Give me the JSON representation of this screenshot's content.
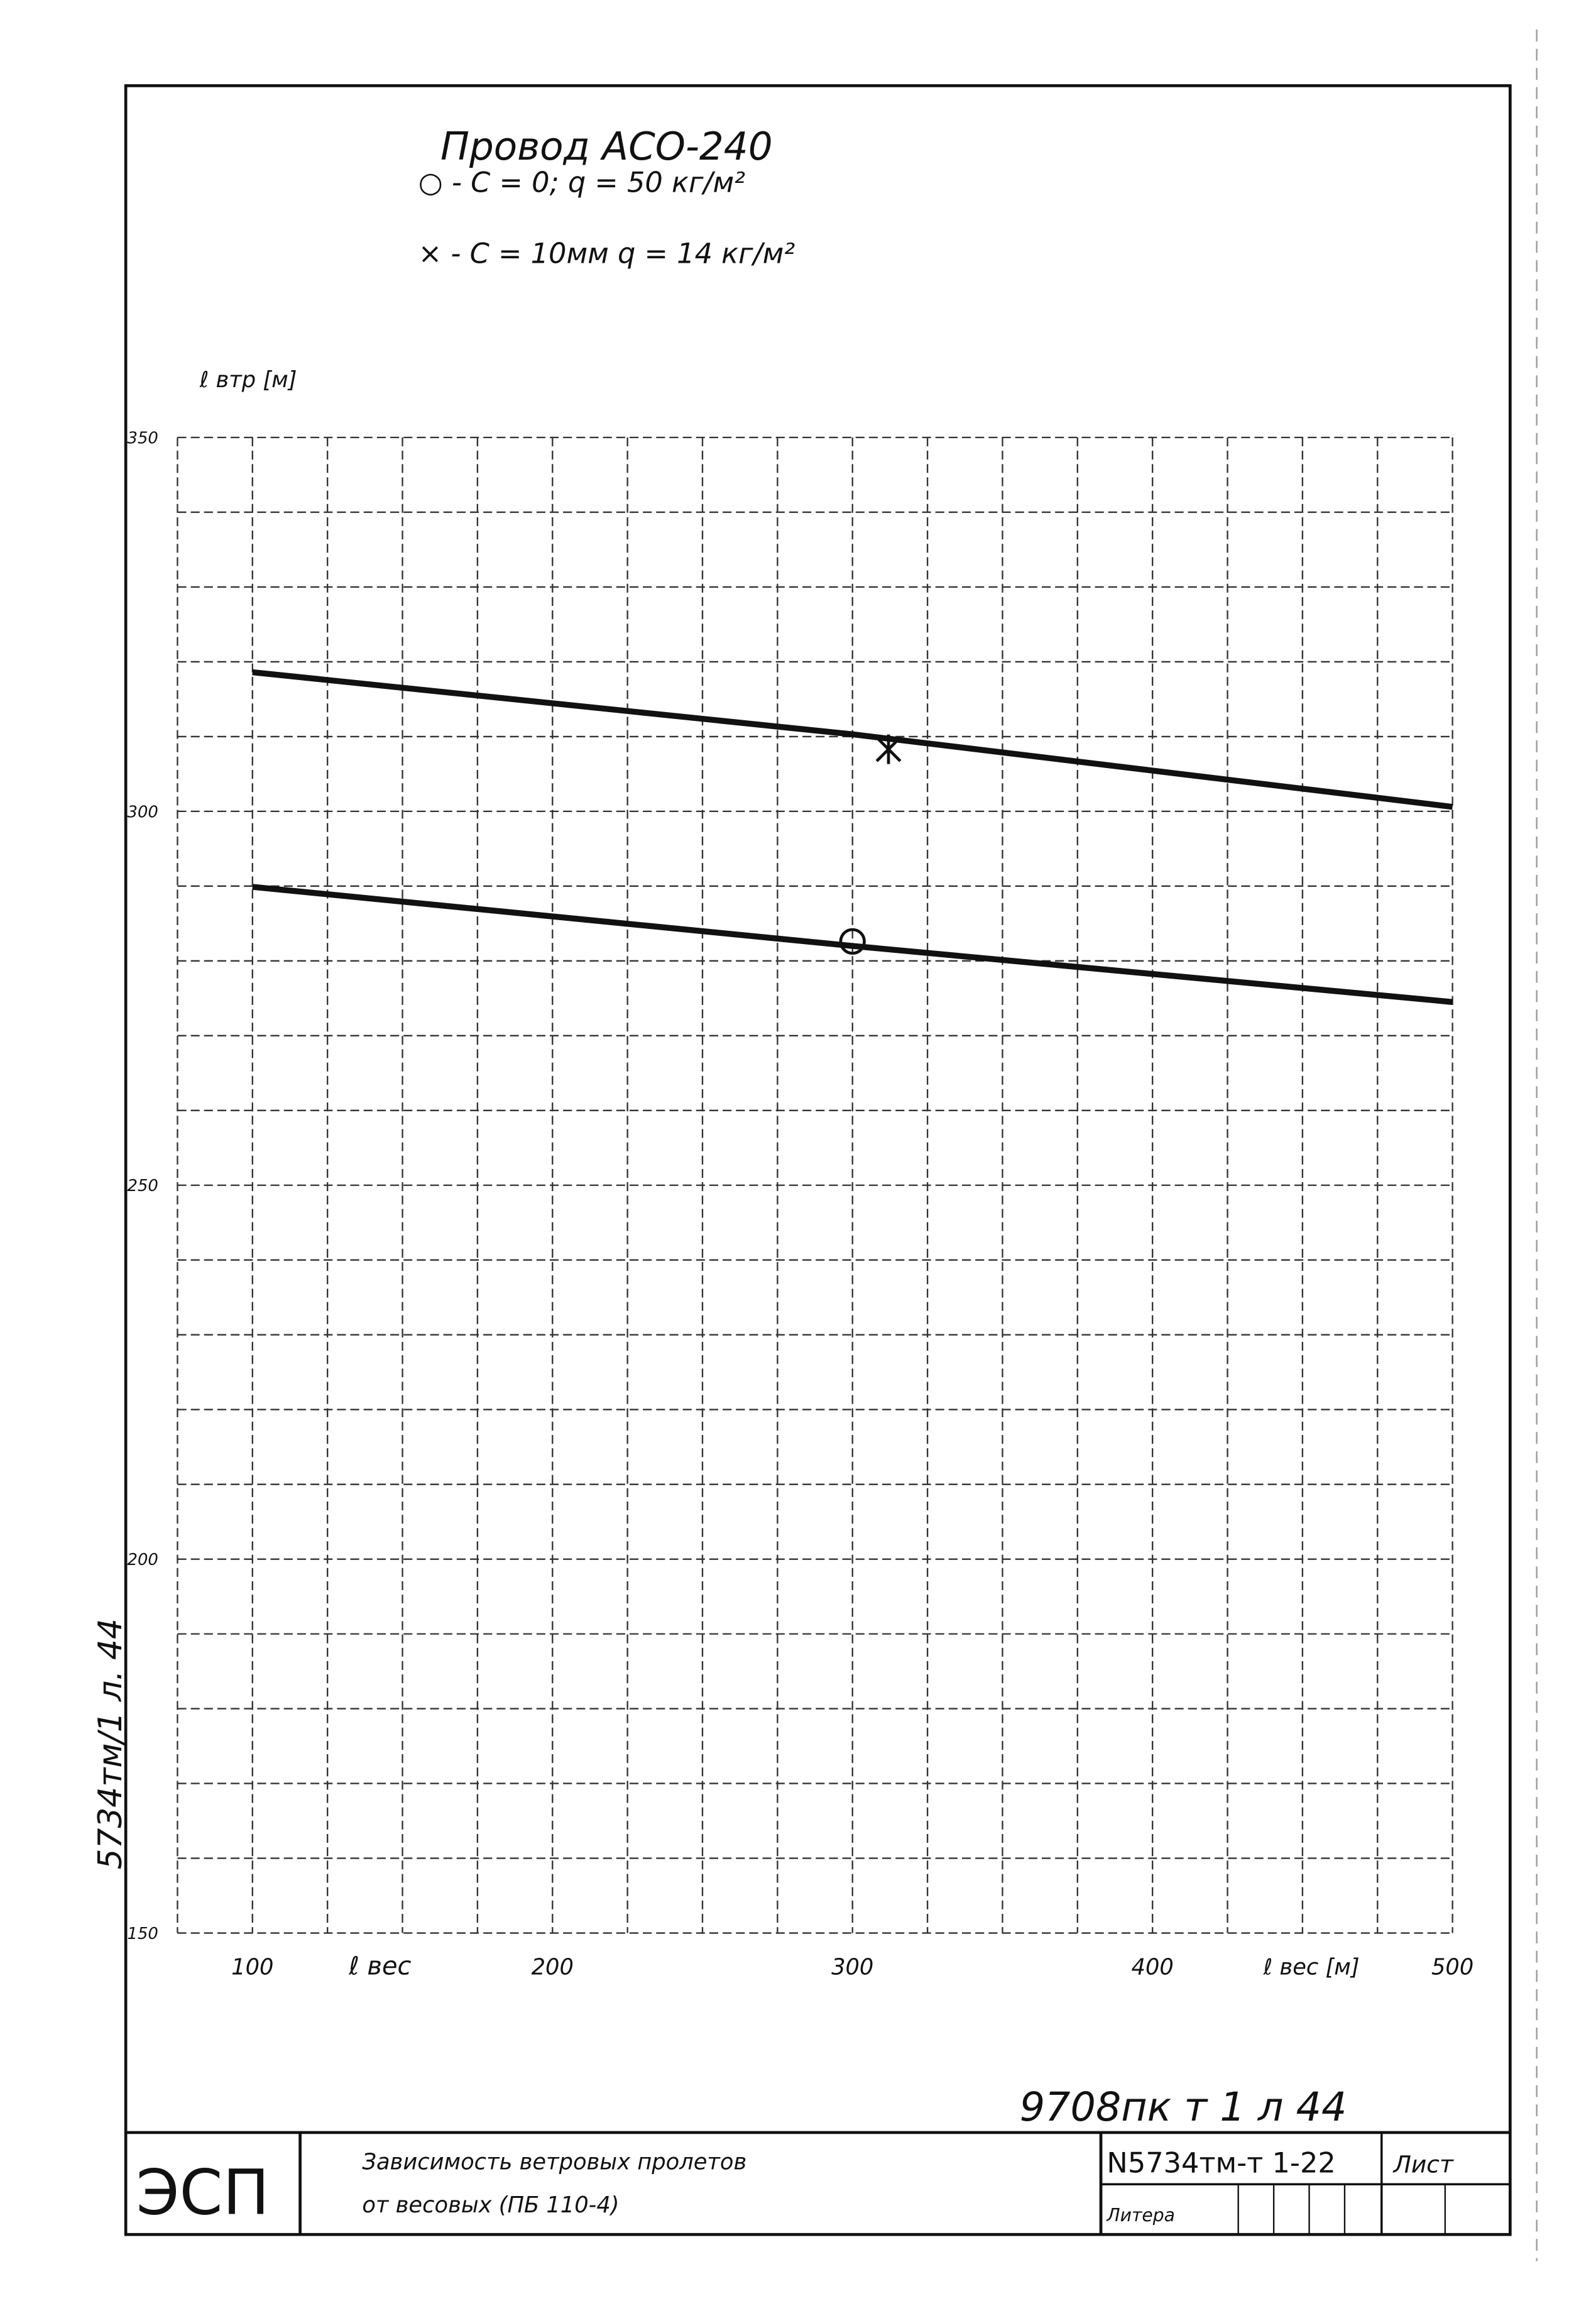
{
  "chart_data": {
    "type": "line",
    "title": "Провод АСО-240",
    "y_label": "ℓ втр [м]",
    "x_label": "ℓ вес",
    "x_label_2": "ℓ вес [м]",
    "xlim": [
      75,
      500
    ],
    "ylim": [
      150,
      350
    ],
    "xticks": [
      100,
      200,
      300,
      400,
      500
    ],
    "yticks": [
      150,
      200,
      250,
      300,
      350
    ],
    "xgrid": [
      75,
      100,
      125,
      150,
      175,
      200,
      225,
      250,
      275,
      300,
      325,
      350,
      375,
      400,
      425,
      450,
      475,
      500
    ],
    "ygrid": [
      150,
      160,
      170,
      180,
      190,
      200,
      210,
      220,
      230,
      240,
      250,
      260,
      270,
      280,
      290,
      300,
      310,
      320,
      330,
      340,
      350
    ],
    "grid": true,
    "series": [
      {
        "name": "○ - С = 0;   q = 50 кг/м²",
        "marker": "circle",
        "color": "#111",
        "x": [
          100,
          300,
          500
        ],
        "values": [
          289.9,
          282,
          274.5
        ],
        "marker_x": [
          300
        ],
        "marker_values": [
          282.6
        ]
      },
      {
        "name": "× - С = 10мм   q = 14 кг/м²",
        "marker": "cross",
        "color": "#111",
        "x": [
          100,
          300,
          500
        ],
        "values": [
          318.6,
          310.3,
          300.6
        ],
        "marker_x": [
          312
        ],
        "marker_values": [
          308.3
        ]
      }
    ]
  },
  "side_note": "5734тм/1 л. 44",
  "archive_number": "9708пк т 1 л 44",
  "title_block": {
    "logo": "ЭСП",
    "caption_1": "Зависимость ветровых пролетов",
    "caption_2": "от весовых (ПБ 110-4)",
    "code": "N5734тм-т 1-22",
    "sheet": "Лист",
    "litera": "Литера"
  }
}
